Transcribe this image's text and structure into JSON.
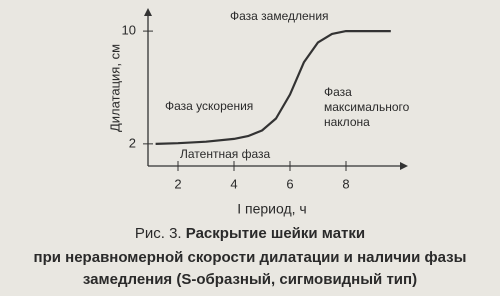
{
  "chart_data": {
    "type": "line",
    "y_label": "Дилатация, см",
    "x_label": "I период, ч",
    "x": [
      1.2,
      2,
      3,
      4,
      4.5,
      5,
      5.5,
      6,
      6.5,
      7,
      7.5,
      8,
      9,
      9.6
    ],
    "values": [
      2.0,
      2.05,
      2.15,
      2.35,
      2.55,
      2.95,
      3.8,
      5.5,
      7.8,
      9.2,
      9.8,
      10,
      10,
      10
    ],
    "color": "#333333",
    "xlim": [
      1,
      10
    ],
    "xticks": [
      2,
      4,
      6,
      8
    ],
    "ylim": [
      0.5,
      11
    ],
    "yticks": [
      2,
      10
    ],
    "annotations": [
      [
        "Фаза замедления"
      ],
      [
        "Фаза  ускорения"
      ],
      [
        "Фаза",
        "максимального",
        "наклона"
      ],
      [
        "Латентная фаза"
      ]
    ]
  },
  "caption": {
    "label": "Рис. 3.",
    "lines": [
      "Раскрытие шейки матки",
      "при неравномерной скорости дилатации и наличии фазы",
      "замедления (S-образный, сигмовидный тип)"
    ]
  }
}
